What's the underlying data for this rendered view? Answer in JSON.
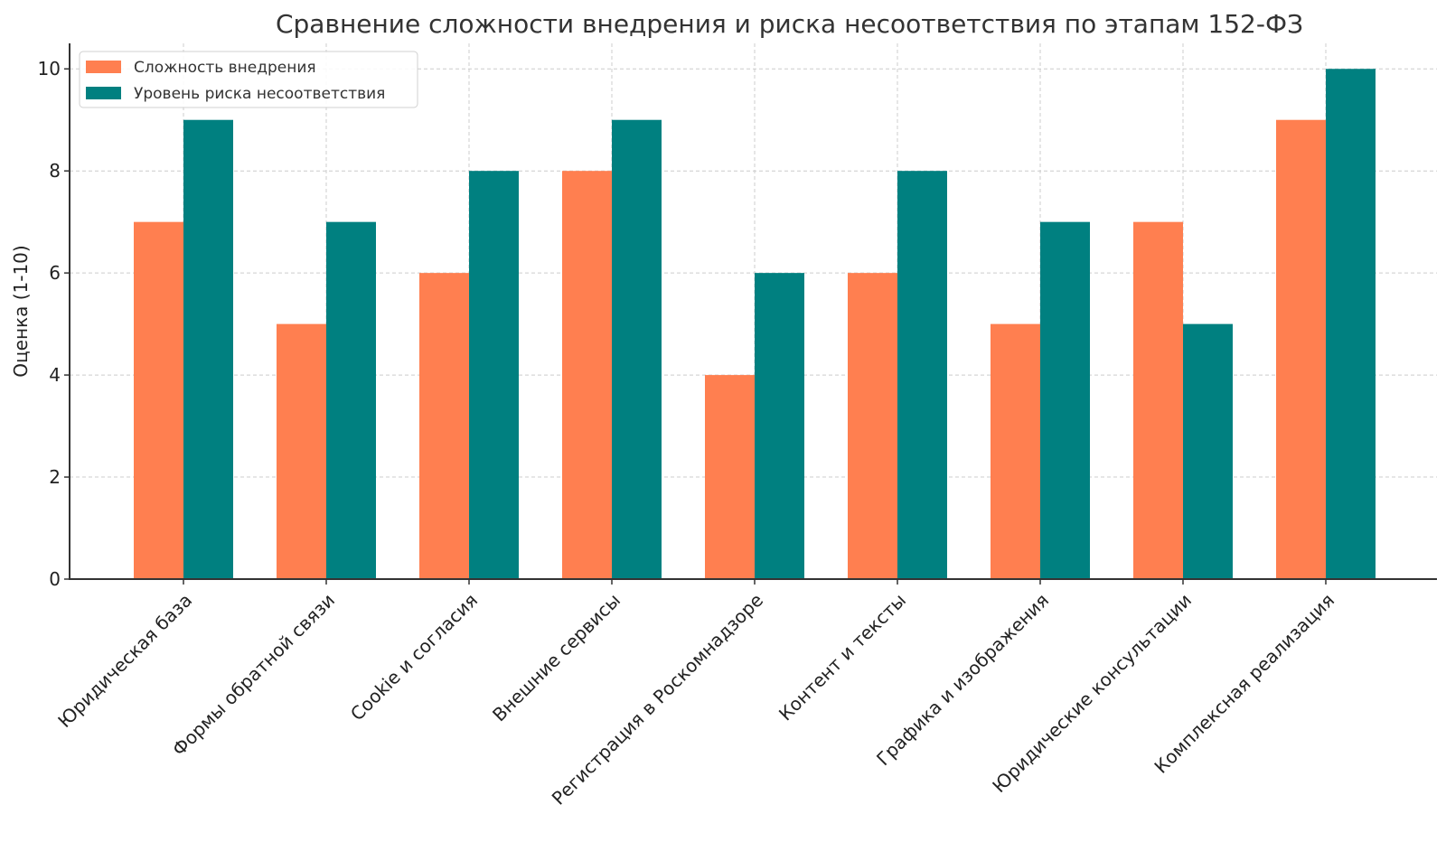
{
  "chart_data": {
    "type": "bar",
    "title": "Сравнение сложности внедрения и риска несоответствия по этапам 152-ФЗ",
    "xlabel": "",
    "ylabel": "Оценка (1-10)",
    "ylim": [
      0,
      10.5
    ],
    "yticks": [
      0,
      2,
      4,
      6,
      8,
      10
    ],
    "grid": true,
    "legend_position": "top-left",
    "categories": [
      "Юридическая база",
      "Формы обратной связи",
      "Cookie и согласия",
      "Внешние сервисы",
      "Регистрация в Роскомнадзоре",
      "Контент и тексты",
      "Графика и изображения",
      "Юридические консультации",
      "Комплексная реализация"
    ],
    "series": [
      {
        "name": "Сложность внедрения",
        "color": "#ff7f50",
        "values": [
          7,
          5,
          6,
          8,
          4,
          6,
          5,
          7,
          9
        ]
      },
      {
        "name": "Уровень риска несоответствия",
        "color": "#008080",
        "values": [
          9,
          7,
          8,
          9,
          6,
          8,
          7,
          5,
          10
        ]
      }
    ]
  }
}
